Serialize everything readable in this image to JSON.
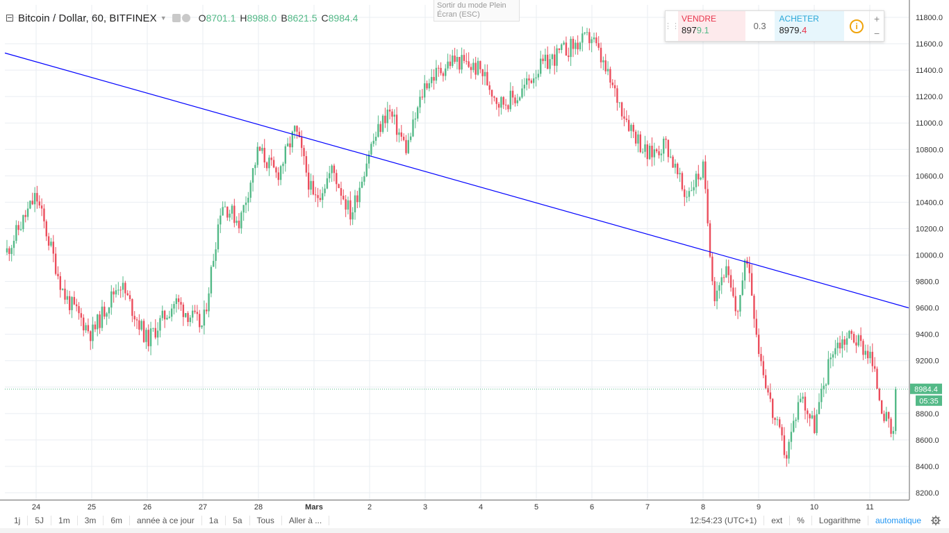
{
  "legend": {
    "title": "Bitcoin / Dollar, 60, BITFINEX",
    "open_label": "O",
    "open": "8701.1",
    "high_label": "H",
    "high": "8988.0",
    "low_label": "B",
    "low": "8621.5",
    "close_label": "C",
    "close": "8984.4"
  },
  "fullscreen_tip": {
    "line1": "Sortir du mode Plein",
    "line2": "Écran (ESC)"
  },
  "trade_panel": {
    "sell_label": "VENDRE",
    "sell_price_main": "897",
    "sell_price_last": "9.1",
    "spread": "0.3",
    "buy_label": "ACHETER",
    "buy_price_main": "8979.",
    "buy_price_last": "4",
    "info_glyph": "i",
    "plus": "+",
    "minus": "−"
  },
  "toolbar": {
    "ranges": [
      "1j",
      "5J",
      "1m",
      "3m",
      "6m",
      "année à ce jour",
      "1a",
      "5a",
      "Tous",
      "Aller à ..."
    ],
    "time": "12:54:23 (UTC+1)",
    "ext": "ext",
    "percent": "%",
    "log": "Logarithme",
    "auto": "automatique"
  },
  "colors": {
    "up": "#53b987",
    "down": "#eb4d5c",
    "trendline": "#0000ff",
    "grid": "#e9edf2",
    "accent": "#2196f3"
  },
  "chart_data": {
    "type": "candlestick",
    "symbol": "BTCUSD",
    "interval_minutes": 60,
    "exchange": "BITFINEX",
    "y_ticks": [
      "8200.0",
      "8400.0",
      "8600.0",
      "8800.0",
      "9000.0",
      "9200.0",
      "9400.0",
      "9600.0",
      "9800.0",
      "10000.0",
      "10200.0",
      "10400.0",
      "10600.0",
      "10800.0",
      "11000.0",
      "11200.0",
      "11400.0",
      "11600.0",
      "11800.0"
    ],
    "x_ticks": [
      "24",
      "25",
      "26",
      "27",
      "28",
      "Mars",
      "2",
      "3",
      "4",
      "5",
      "6",
      "7",
      "8",
      "9",
      "10",
      "11"
    ],
    "ylim": [
      8140,
      11870
    ],
    "last_price": "8984.4",
    "countdown": "05:35",
    "trendline": {
      "start": {
        "day": "23",
        "price": 11530
      },
      "end": {
        "day": "11",
        "price": 9600
      }
    },
    "price_path": [
      [
        "23",
        10000
      ],
      [
        "24",
        10450
      ],
      [
        "24",
        9700
      ],
      [
        "25",
        9400
      ],
      [
        "25",
        9800
      ],
      [
        "26",
        9350
      ],
      [
        "26",
        9650
      ],
      [
        "27",
        9450
      ],
      [
        "27",
        10400
      ],
      [
        "27",
        10250
      ],
      [
        "28",
        10800
      ],
      [
        "28",
        10600
      ],
      [
        "28",
        10950
      ],
      [
        "Mars",
        10400
      ],
      [
        "Mars",
        10650
      ],
      [
        "Mars",
        10300
      ],
      [
        "2",
        10800
      ],
      [
        "2",
        11100
      ],
      [
        "2",
        10800
      ],
      [
        "3",
        11300
      ],
      [
        "3",
        11480
      ],
      [
        "4",
        11400
      ],
      [
        "4",
        11150
      ],
      [
        "4",
        11200
      ],
      [
        "5",
        11400
      ],
      [
        "5",
        11550
      ],
      [
        "6",
        11650
      ],
      [
        "6",
        11300
      ],
      [
        "6",
        11000
      ],
      [
        "7",
        10750
      ],
      [
        "7",
        10850
      ],
      [
        "7",
        10450
      ],
      [
        "8",
        10650
      ],
      [
        "8",
        9700
      ],
      [
        "8",
        9900
      ],
      [
        "8",
        9550
      ],
      [
        "8",
        10000
      ],
      [
        "9",
        9300
      ],
      [
        "9",
        8800
      ],
      [
        "9",
        8480
      ],
      [
        "9",
        8950
      ],
      [
        "10",
        8700
      ],
      [
        "10",
        9300
      ],
      [
        "10",
        9400
      ],
      [
        "11",
        9250
      ],
      [
        "11",
        8800
      ],
      [
        "11",
        8520
      ],
      [
        "11",
        8984
      ]
    ]
  }
}
